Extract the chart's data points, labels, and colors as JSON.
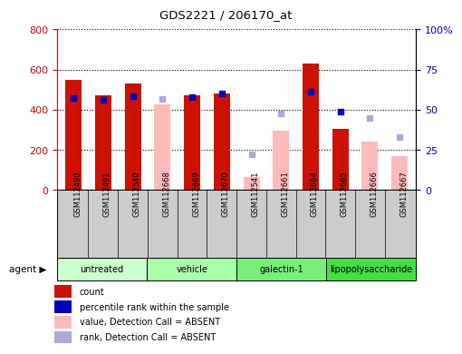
{
  "title": "GDS2221 / 206170_at",
  "samples": [
    "GSM112490",
    "GSM112491",
    "GSM112540",
    "GSM112668",
    "GSM112669",
    "GSM112670",
    "GSM112541",
    "GSM112661",
    "GSM112664",
    "GSM112665",
    "GSM112666",
    "GSM112667"
  ],
  "groups": [
    {
      "label": "untreated",
      "color": "#ccffcc",
      "indices": [
        0,
        1,
        2
      ]
    },
    {
      "label": "vehicle",
      "color": "#aaffaa",
      "indices": [
        3,
        4,
        5
      ]
    },
    {
      "label": "galectin-1",
      "color": "#77ee77",
      "indices": [
        6,
        7,
        8
      ]
    },
    {
      "label": "lipopolysaccharide",
      "color": "#44dd44",
      "indices": [
        9,
        10,
        11
      ]
    }
  ],
  "red_bars": [
    550,
    470,
    530,
    null,
    470,
    480,
    null,
    null,
    630,
    305,
    null,
    null
  ],
  "pink_bars": [
    null,
    null,
    null,
    425,
    null,
    null,
    65,
    295,
    null,
    null,
    240,
    170
  ],
  "blue_squares": [
    460,
    450,
    465,
    null,
    462,
    480,
    null,
    null,
    490,
    390,
    null,
    null
  ],
  "lavender_squares": [
    null,
    null,
    null,
    455,
    null,
    null,
    175,
    380,
    null,
    null,
    358,
    265
  ],
  "left_ylim": [
    0,
    800
  ],
  "right_ylim": [
    0,
    100
  ],
  "left_yticks": [
    0,
    200,
    400,
    600,
    800
  ],
  "right_yticks": [
    0,
    25,
    50,
    75,
    100
  ],
  "right_yticklabels": [
    "0",
    "25",
    "50",
    "75",
    "100%"
  ],
  "left_tick_color": "#cc0000",
  "right_tick_color": "#0000bb",
  "red_color": "#cc1100",
  "pink_color": "#ffbbbb",
  "blue_color": "#0000bb",
  "lavender_color": "#aaaadd",
  "bg_color": "#ffffff",
  "plot_bg": "#ffffff",
  "xticklabel_bg": "#cccccc",
  "legend_items": [
    {
      "color": "#cc1100",
      "label": "count"
    },
    {
      "color": "#0000bb",
      "label": "percentile rank within the sample"
    },
    {
      "color": "#ffbbbb",
      "label": "value, Detection Call = ABSENT"
    },
    {
      "color": "#aaaadd",
      "label": "rank, Detection Call = ABSENT"
    }
  ]
}
